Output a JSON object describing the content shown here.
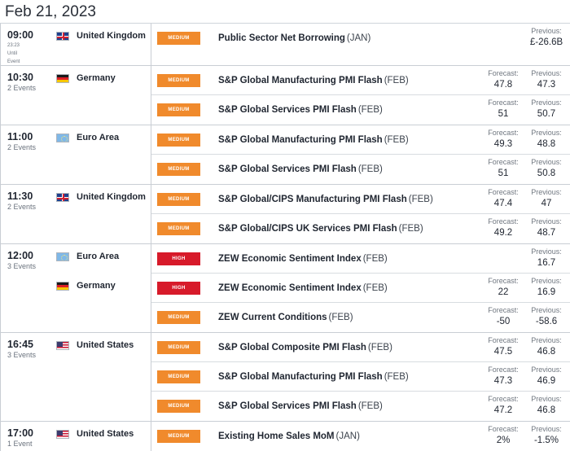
{
  "header": {
    "date": "Feb 21, 2023"
  },
  "labels": {
    "forecast": "Forecast:",
    "previous": "Previous:"
  },
  "groups": [
    {
      "time": "09:00",
      "count": "",
      "countdown": [
        "23:23",
        "Until",
        "Event"
      ],
      "countries": [
        {
          "name": "United Kingdom",
          "flag": "uk-flag",
          "events": [
            {
              "impact": "MEDIUM",
              "name": "Public Sector Net Borrowing",
              "period": "(JAN)",
              "forecast": "",
              "previous": "£-26.6B"
            }
          ]
        }
      ]
    },
    {
      "time": "10:30",
      "count": "2 Events",
      "countries": [
        {
          "name": "Germany",
          "flag": "germany-flag",
          "events": [
            {
              "impact": "MEDIUM",
              "name": "S&P Global Manufacturing PMI Flash",
              "period": "(FEB)",
              "forecast": "47.8",
              "previous": "47.3"
            },
            {
              "impact": "MEDIUM",
              "name": "S&P Global Services PMI Flash",
              "period": "(FEB)",
              "forecast": "51",
              "previous": "50.7"
            }
          ]
        }
      ]
    },
    {
      "time": "11:00",
      "count": "2 Events",
      "countries": [
        {
          "name": "Euro Area",
          "flag": "eu-flag",
          "events": [
            {
              "impact": "MEDIUM",
              "name": "S&P Global Manufacturing PMI Flash",
              "period": "(FEB)",
              "forecast": "49.3",
              "previous": "48.8"
            },
            {
              "impact": "MEDIUM",
              "name": "S&P Global Services PMI Flash",
              "period": "(FEB)",
              "forecast": "51",
              "previous": "50.8"
            }
          ]
        }
      ]
    },
    {
      "time": "11:30",
      "count": "2 Events",
      "countries": [
        {
          "name": "United Kingdom",
          "flag": "uk-flag",
          "events": [
            {
              "impact": "MEDIUM",
              "name": "S&P Global/CIPS Manufacturing PMI Flash",
              "period": "(FEB)",
              "forecast": "47.4",
              "previous": "47"
            },
            {
              "impact": "MEDIUM",
              "name": "S&P Global/CIPS UK Services PMI Flash",
              "period": "(FEB)",
              "forecast": "49.2",
              "previous": "48.7"
            }
          ]
        }
      ]
    },
    {
      "time": "12:00",
      "count": "3 Events",
      "countries": [
        {
          "name": "Euro Area",
          "flag": "eu-flag",
          "events": [
            {
              "impact": "HIGH",
              "name": "ZEW Economic Sentiment Index",
              "period": "(FEB)",
              "forecast": "",
              "previous": "16.7"
            }
          ]
        },
        {
          "name": "Germany",
          "flag": "germany-flag",
          "events": [
            {
              "impact": "HIGH",
              "name": "ZEW Economic Sentiment Index",
              "period": "(FEB)",
              "forecast": "22",
              "previous": "16.9"
            },
            {
              "impact": "MEDIUM",
              "name": "ZEW Current Conditions",
              "period": "(FEB)",
              "forecast": "-50",
              "previous": "-58.6"
            }
          ]
        }
      ]
    },
    {
      "time": "16:45",
      "count": "3 Events",
      "countries": [
        {
          "name": "United States",
          "flag": "us-flag",
          "events": [
            {
              "impact": "MEDIUM",
              "name": "S&P Global Composite PMI Flash",
              "period": "(FEB)",
              "forecast": "47.5",
              "previous": "46.8"
            },
            {
              "impact": "MEDIUM",
              "name": "S&P Global Manufacturing PMI Flash",
              "period": "(FEB)",
              "forecast": "47.3",
              "previous": "46.9"
            },
            {
              "impact": "MEDIUM",
              "name": "S&P Global Services PMI Flash",
              "period": "(FEB)",
              "forecast": "47.2",
              "previous": "46.8"
            }
          ]
        }
      ]
    },
    {
      "time": "17:00",
      "count": "1 Event",
      "countries": [
        {
          "name": "United States",
          "flag": "us-flag",
          "events": [
            {
              "impact": "MEDIUM",
              "name": "Existing Home Sales MoM",
              "period": "(JAN)",
              "forecast": "2%",
              "previous": "-1.5%"
            }
          ]
        }
      ]
    }
  ]
}
